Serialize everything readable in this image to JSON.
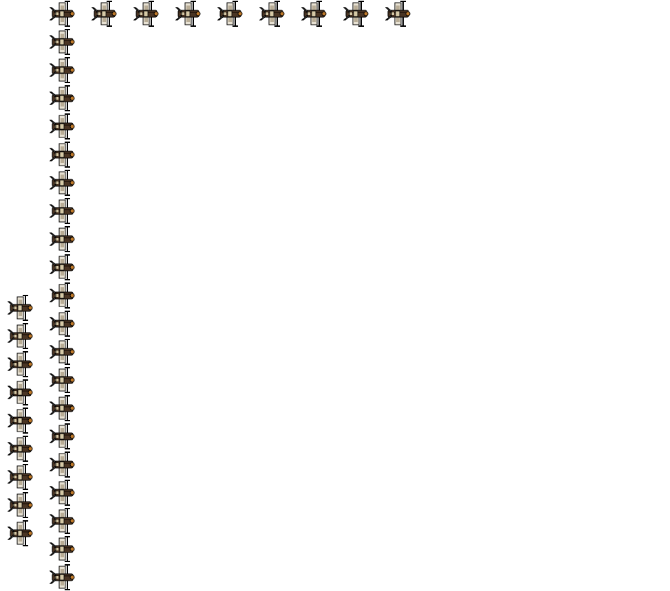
{
  "scene": {
    "background": "#ffffff",
    "sprite_icon": "biplane-sprite-icon",
    "colors": {
      "outline": "#000000",
      "fuselage": "#4a3524",
      "fuselage_dark": "#2b1d12",
      "wing_light": "#e8e2d4",
      "wing_mid": "#b9ad96",
      "canopy": "#d6c9a6",
      "engine": "#c07a2a",
      "white": "#ffffff"
    },
    "grid": {
      "unit_units": 1,
      "top_row": {
        "count": 9
      },
      "tall_column": {
        "count": 20
      },
      "short_column": {
        "count": 9
      }
    }
  }
}
